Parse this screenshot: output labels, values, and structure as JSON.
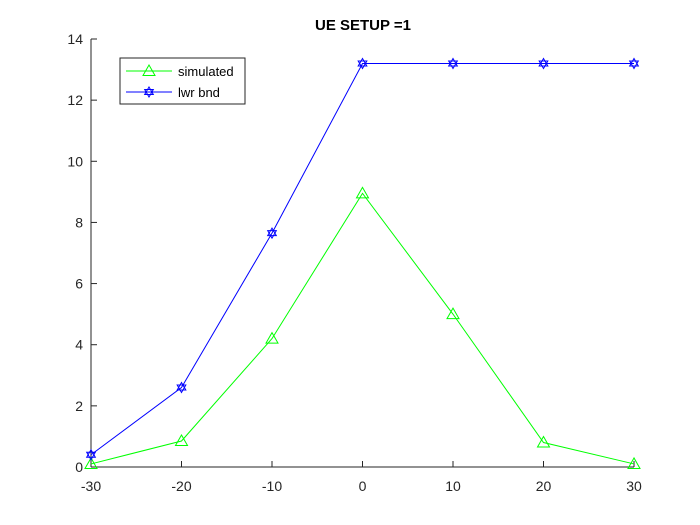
{
  "chart_data": {
    "type": "line",
    "title": "UE SETUP =1",
    "xlabel": "",
    "ylabel": "",
    "xlim": [
      -30,
      30
    ],
    "ylim": [
      0,
      14
    ],
    "xticks": [
      -30,
      -20,
      -10,
      0,
      10,
      20,
      30
    ],
    "yticks": [
      0,
      2,
      4,
      6,
      8,
      10,
      12,
      14
    ],
    "x": [
      -30,
      -20,
      -10,
      0,
      10,
      20,
      30
    ],
    "grid": false,
    "legend_position": "top-left",
    "series": [
      {
        "name": "simulated",
        "color": "#00ff00",
        "marker": "triangle",
        "values": [
          0.1,
          0.85,
          4.2,
          8.95,
          5.0,
          0.8,
          0.1
        ]
      },
      {
        "name": "lwr bnd",
        "color": "#0000ff",
        "marker": "hexagram",
        "values": [
          0.4,
          2.6,
          7.65,
          13.2,
          13.2,
          13.2,
          13.2
        ]
      }
    ]
  }
}
